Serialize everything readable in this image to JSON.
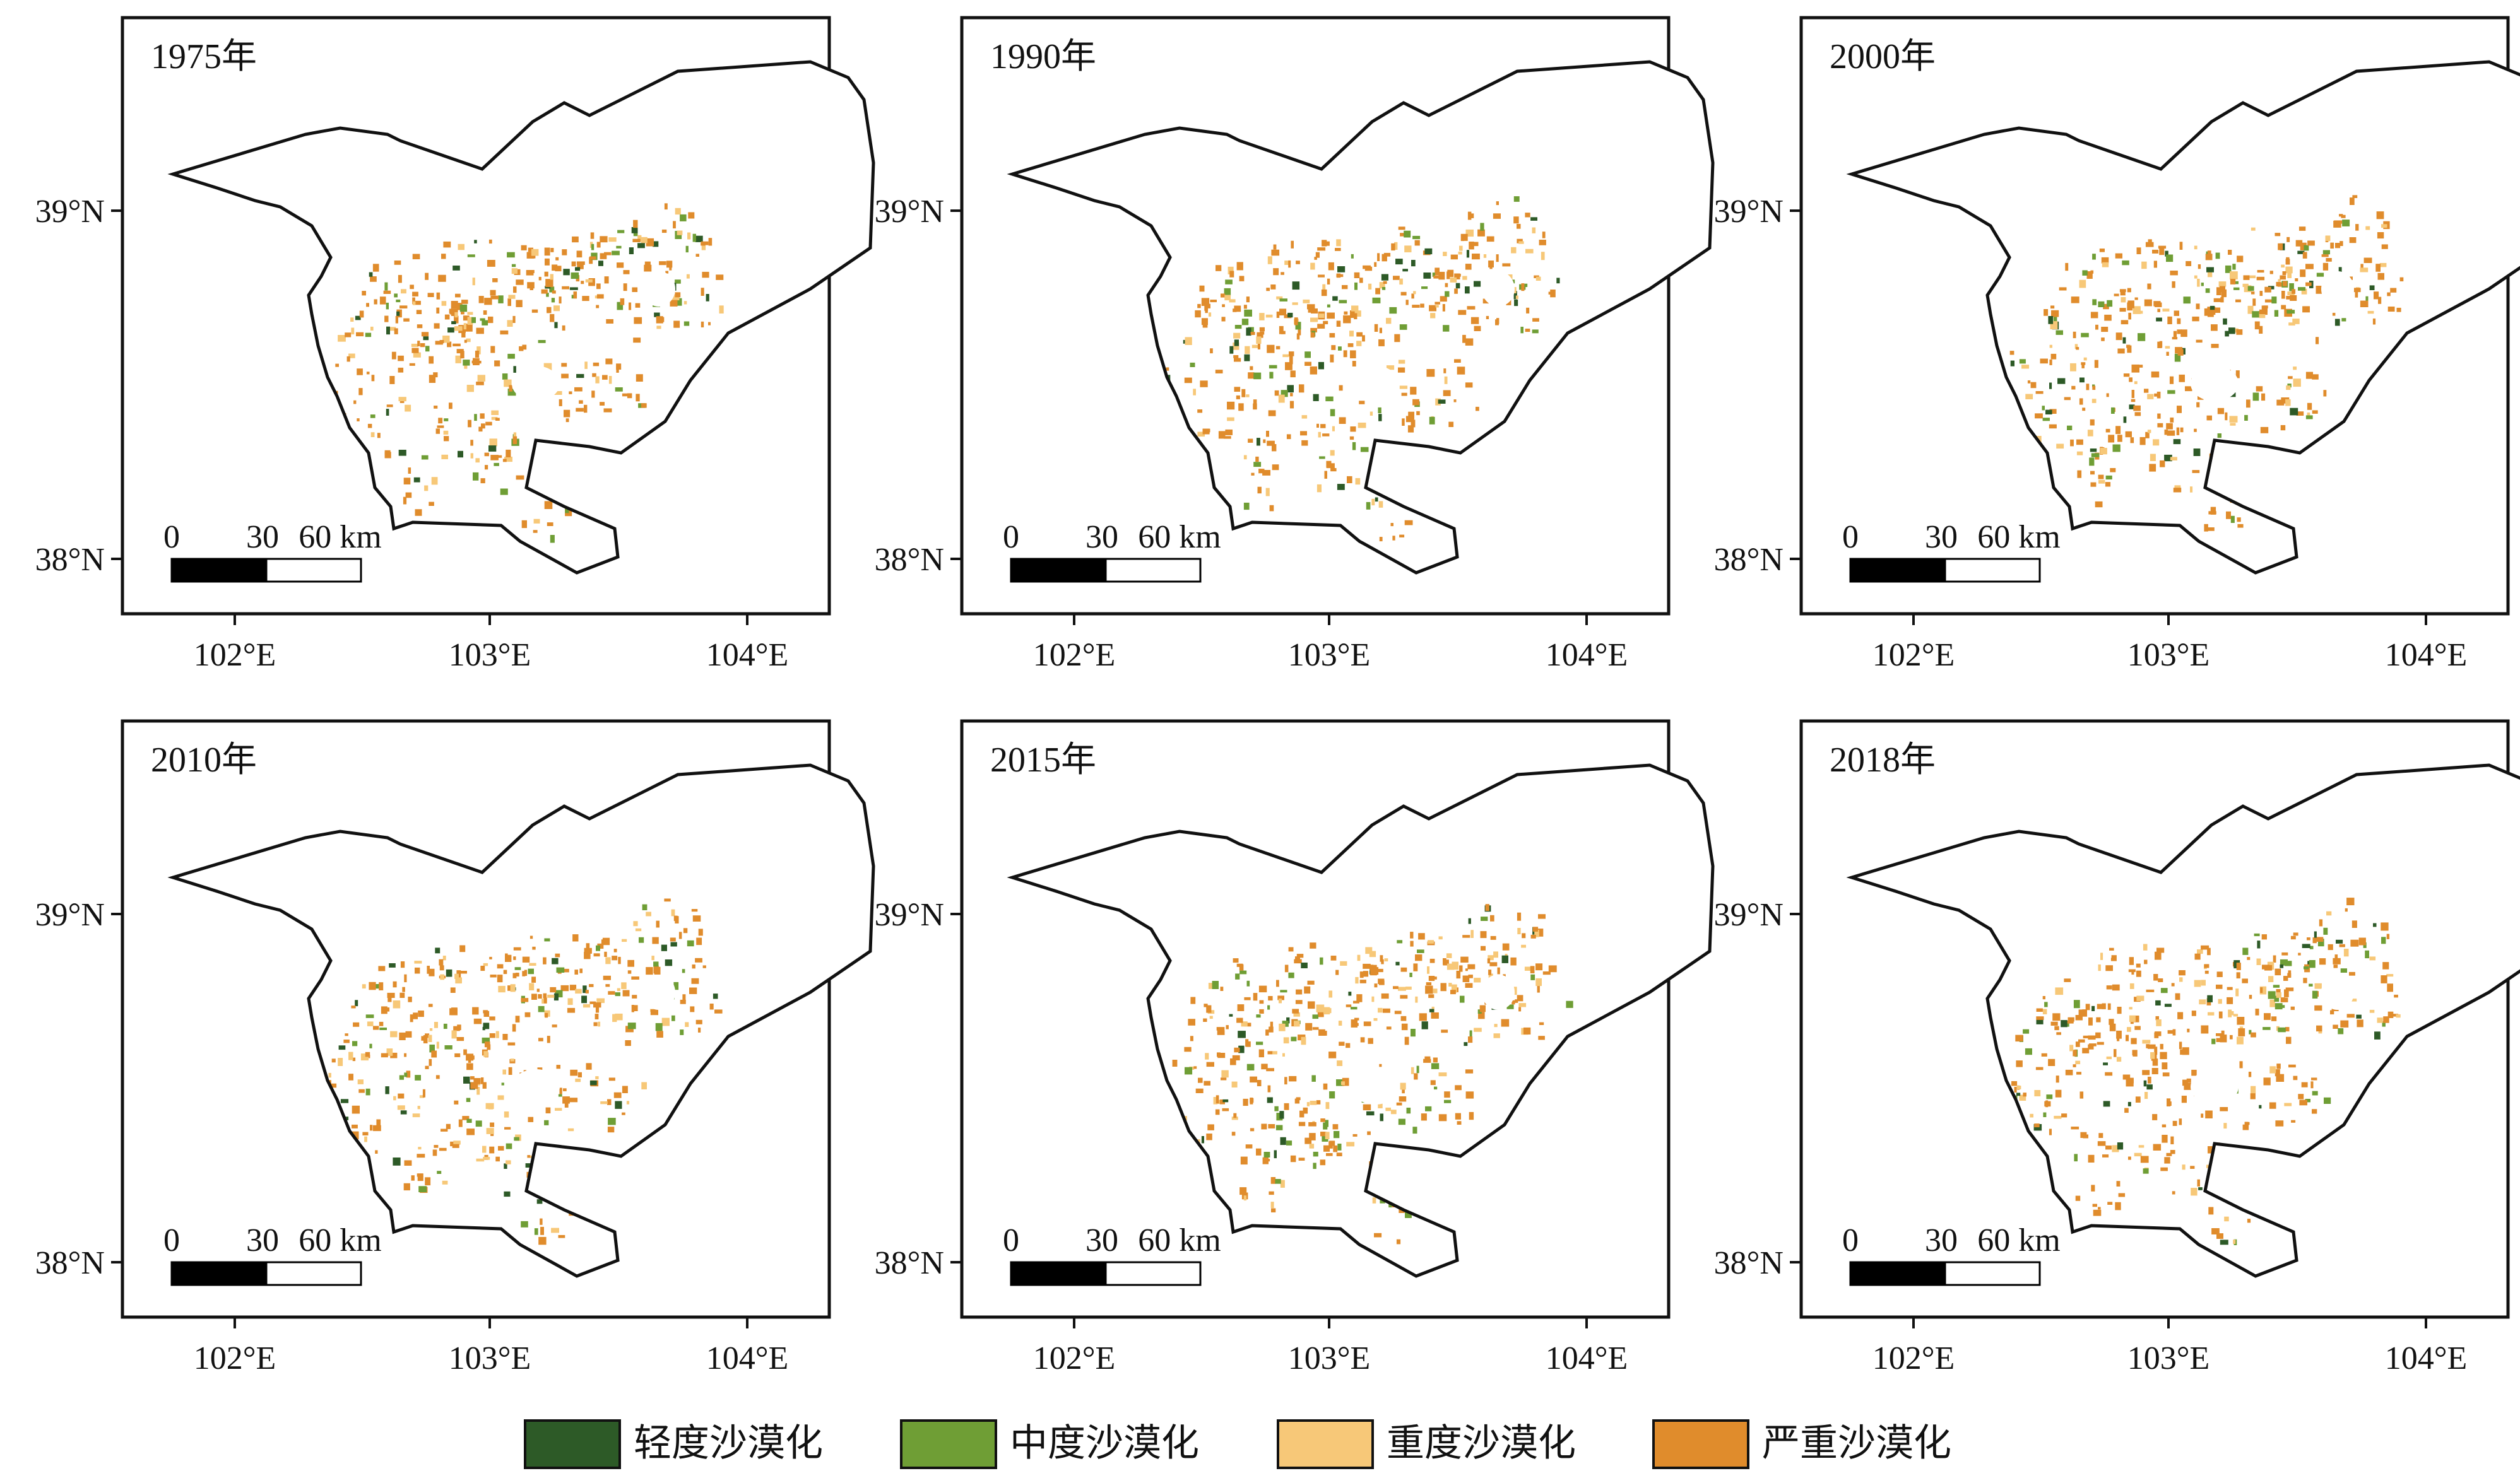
{
  "panels": [
    {
      "year_label": "1975年"
    },
    {
      "year_label": "1990年"
    },
    {
      "year_label": "2000年"
    },
    {
      "year_label": "2010年"
    },
    {
      "year_label": "2015年"
    },
    {
      "year_label": "2018年"
    }
  ],
  "axes": {
    "lat_ticks": [
      "39°N",
      "38°N"
    ],
    "lon_ticks": [
      "102°E",
      "103°E",
      "104°E"
    ]
  },
  "scale_bar": {
    "labels": [
      "0",
      "30",
      "60 km"
    ]
  },
  "legend": [
    {
      "label": "轻度沙漠化",
      "color": "#2d5a27"
    },
    {
      "label": "中度沙漠化",
      "color": "#6f9e35"
    },
    {
      "label": "重度沙漠化",
      "color": "#f7c878"
    },
    {
      "label": "严重沙漠化",
      "color": "#e08c2c"
    }
  ]
}
